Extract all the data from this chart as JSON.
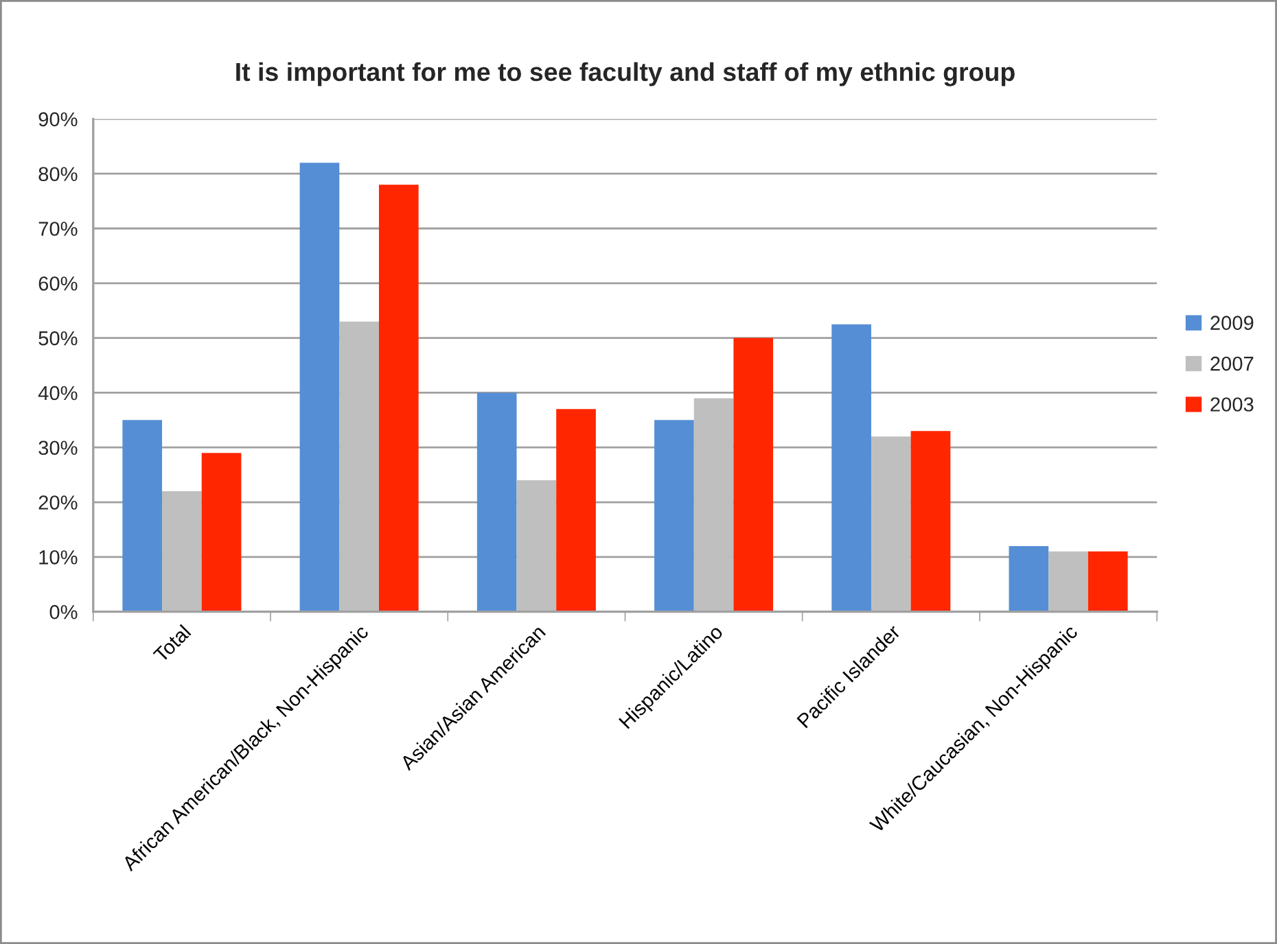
{
  "chart_data": {
    "type": "bar",
    "title": "It is important for me to see faculty and staff of my ethnic group",
    "categories": [
      "Total",
      "African American/Black, Non-Hispanic",
      "Asian/Asian American",
      "Hispanic/Latino",
      "Pacific Islander",
      "White/Caucasian, Non-Hispanic"
    ],
    "series": [
      {
        "name": "2009",
        "color": "#558ed5",
        "values": [
          35,
          82,
          40,
          35,
          52.5,
          12
        ]
      },
      {
        "name": "2007",
        "color": "#bfbfbf",
        "values": [
          22,
          53,
          24,
          39,
          32,
          11
        ]
      },
      {
        "name": "2003",
        "color": "#ff2600",
        "values": [
          29,
          78,
          37,
          50,
          33,
          11
        ]
      }
    ],
    "ylim": [
      0,
      90
    ],
    "yticks": [
      {
        "value": 0,
        "label": "0%"
      },
      {
        "value": 10,
        "label": "10%"
      },
      {
        "value": 20,
        "label": "20%"
      },
      {
        "value": 30,
        "label": "30%"
      },
      {
        "value": 40,
        "label": "40%"
      },
      {
        "value": 50,
        "label": "50%"
      },
      {
        "value": 60,
        "label": "60%"
      },
      {
        "value": 70,
        "label": "70%"
      },
      {
        "value": 80,
        "label": "80%"
      },
      {
        "value": 90,
        "label": "90%"
      }
    ],
    "grid": "y",
    "legend": "right"
  }
}
